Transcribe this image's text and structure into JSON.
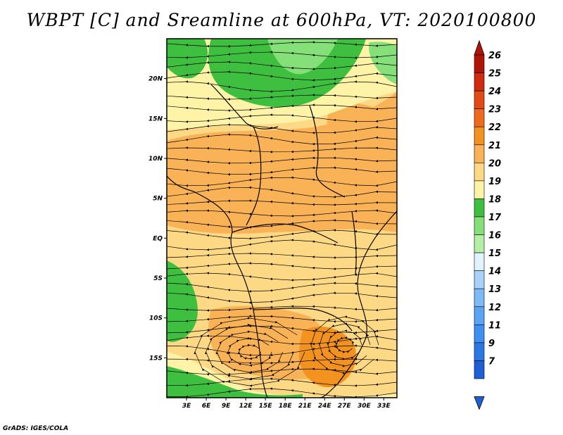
{
  "title": "WBPT [C] and Sreamline at 600hPa, VT: 2020100800",
  "footer": "GrADS: IGES/COLA",
  "map": {
    "lon_range": [
      0,
      35
    ],
    "lat_range": [
      -20,
      25
    ],
    "x_ticks": [
      {
        "value": 3,
        "label": "3E"
      },
      {
        "value": 6,
        "label": "6E"
      },
      {
        "value": 9,
        "label": "9E"
      },
      {
        "value": 12,
        "label": "12E"
      },
      {
        "value": 15,
        "label": "15E"
      },
      {
        "value": 18,
        "label": "18E"
      },
      {
        "value": 21,
        "label": "21E"
      },
      {
        "value": 24,
        "label": "24E"
      },
      {
        "value": 27,
        "label": "27E"
      },
      {
        "value": 30,
        "label": "30E"
      },
      {
        "value": 33,
        "label": "33E"
      }
    ],
    "y_ticks": [
      {
        "value": 20,
        "label": "20N"
      },
      {
        "value": 15,
        "label": "15N"
      },
      {
        "value": 10,
        "label": "10N"
      },
      {
        "value": 5,
        "label": "5N"
      },
      {
        "value": 0,
        "label": "EQ"
      },
      {
        "value": -5,
        "label": "5S"
      },
      {
        "value": -10,
        "label": "10S"
      },
      {
        "value": -15,
        "label": "15S"
      }
    ]
  },
  "colorbar": {
    "levels": [
      "7",
      "9",
      "11",
      "12",
      "13",
      "14",
      "15",
      "16",
      "17",
      "18",
      "19",
      "20",
      "21",
      "22",
      "23",
      "24",
      "25",
      "26"
    ],
    "colors": [
      "#1f5fd6",
      "#2b78e4",
      "#3d8ff0",
      "#5aa4f4",
      "#7dbaf7",
      "#a8d2fa",
      "#e0f4ff",
      "#b4efa8",
      "#86e07a",
      "#3fbf3f",
      "#fff3a8",
      "#fdd985",
      "#f9b256",
      "#f4921f",
      "#ef6a1a",
      "#e44a14",
      "#d02a10",
      "#b01408"
    ]
  },
  "colors": {
    "stream": "#000000",
    "border": "#000000"
  }
}
